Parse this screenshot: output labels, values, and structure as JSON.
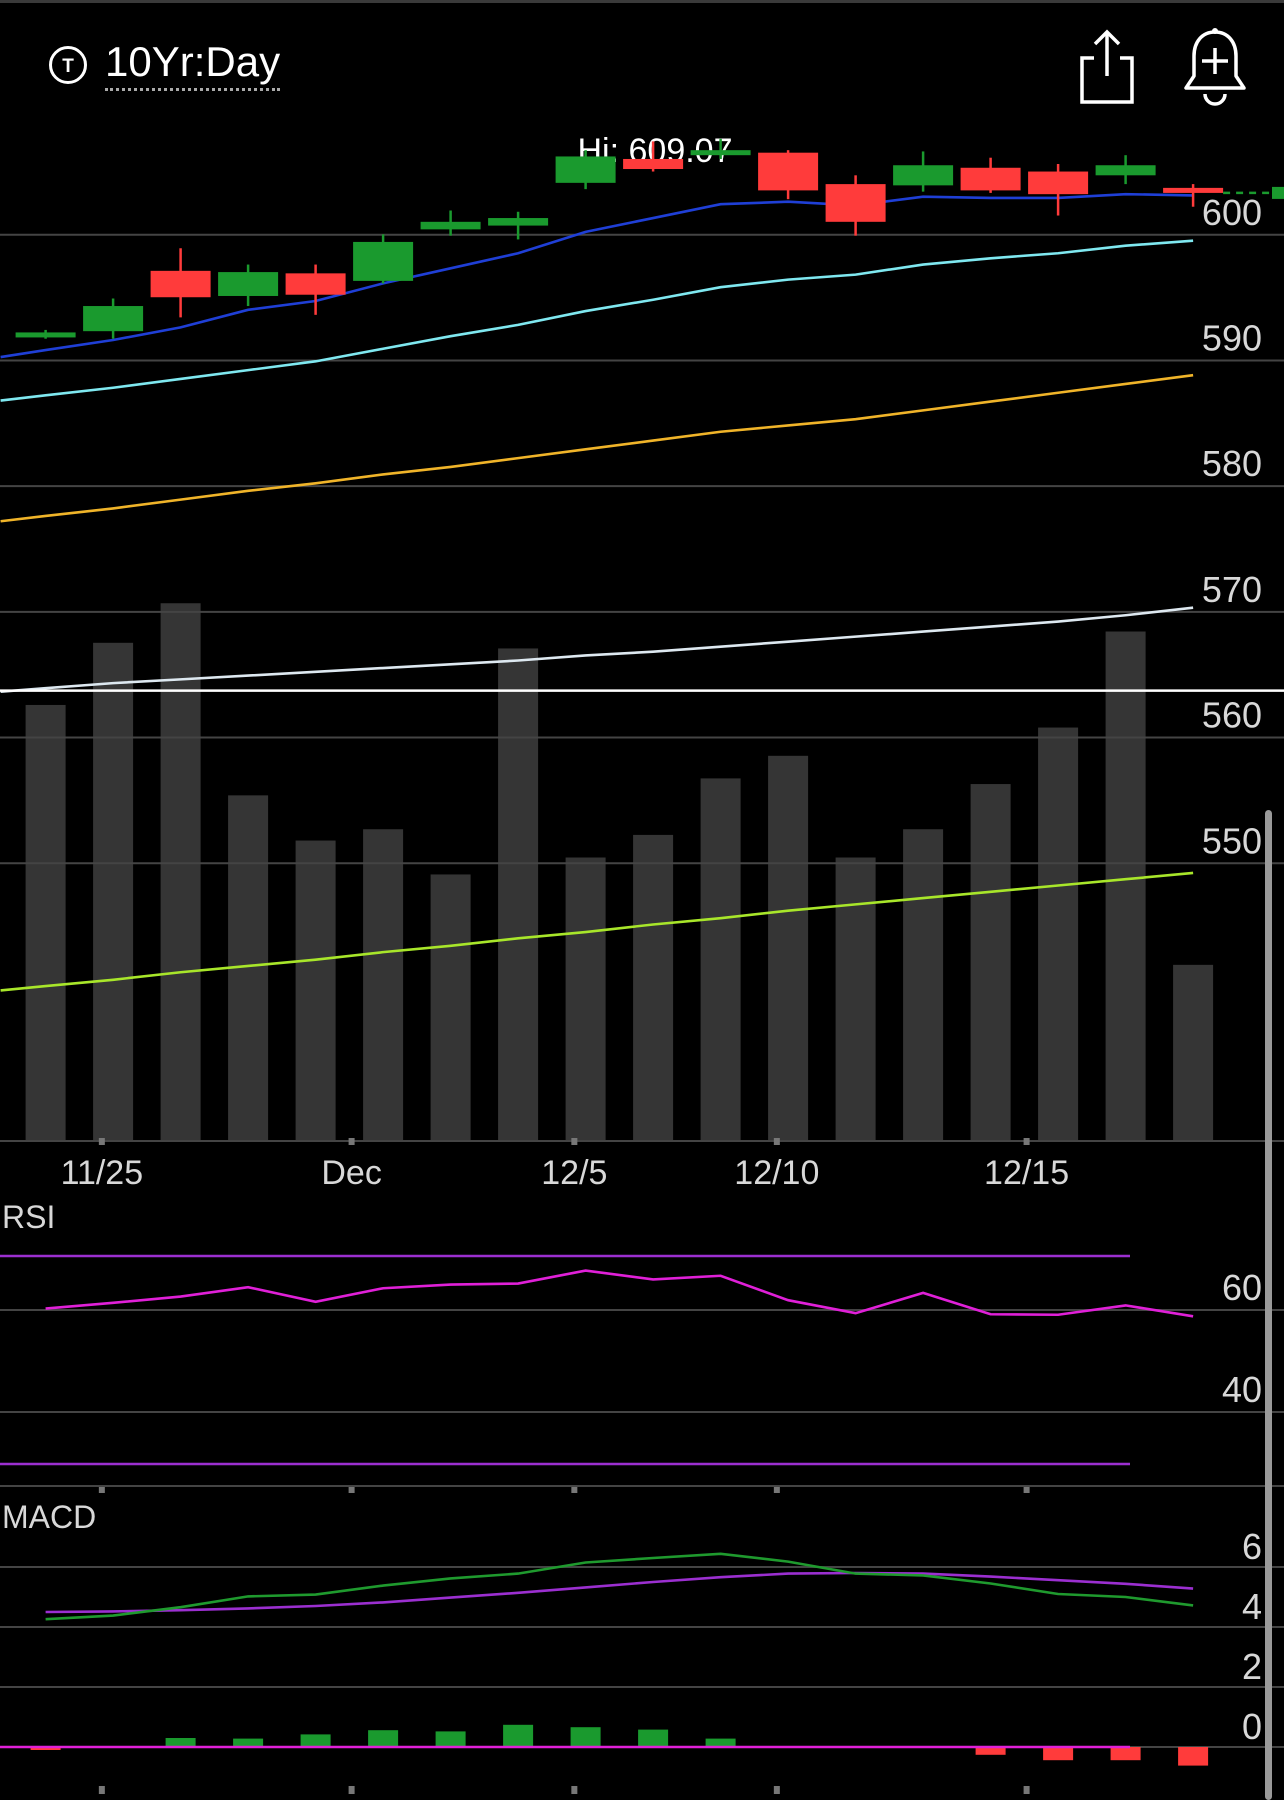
{
  "header": {
    "symbol_icon": "ticker-circle-icon",
    "symbol_letter": "T",
    "range_label": "10Yr:Day",
    "share_icon": "share-icon",
    "alert_icon": "bell-plus-icon"
  },
  "chart_data": {
    "type": "candlestick",
    "hi_label": "Hi: 609.07",
    "price_axis": {
      "ticks": [
        600,
        590,
        580,
        570,
        560,
        550
      ],
      "range": [
        544.4,
        610.8
      ]
    },
    "x_labels": [
      {
        "label": "11/25",
        "index": 1.5
      },
      {
        "label": "Dec",
        "index": 5.2
      },
      {
        "label": "12/5",
        "index": 8.5
      },
      {
        "label": "12/10",
        "index": 11.5
      },
      {
        "label": "12/15",
        "index": 15.2
      }
    ],
    "candles": [
      {
        "o": 593.6,
        "c": 593.9,
        "h": 594.1,
        "l": 593.4
      },
      {
        "o": 594.0,
        "c": 596.0,
        "h": 596.6,
        "l": 593.4
      },
      {
        "o": 598.8,
        "c": 596.7,
        "h": 600.6,
        "l": 595.1
      },
      {
        "o": 596.8,
        "c": 598.7,
        "h": 599.3,
        "l": 596.0
      },
      {
        "o": 598.6,
        "c": 596.9,
        "h": 599.3,
        "l": 595.3
      },
      {
        "o": 598.0,
        "c": 601.1,
        "h": 601.7,
        "l": 597.8
      },
      {
        "o": 602.1,
        "c": 602.7,
        "h": 603.6,
        "l": 601.6
      },
      {
        "o": 602.4,
        "c": 603.0,
        "h": 603.5,
        "l": 601.3
      },
      {
        "o": 605.8,
        "c": 607.9,
        "h": 608.4,
        "l": 605.3
      },
      {
        "o": 607.7,
        "c": 606.9,
        "h": 609.1,
        "l": 606.7
      },
      {
        "o": 608.0,
        "c": 608.4,
        "h": 609.3,
        "l": 607.7
      },
      {
        "o": 608.2,
        "c": 605.2,
        "h": 608.4,
        "l": 604.5
      },
      {
        "o": 605.7,
        "c": 602.7,
        "h": 606.4,
        "l": 601.6
      },
      {
        "o": 605.6,
        "c": 607.2,
        "h": 608.3,
        "l": 605.1
      },
      {
        "o": 607.0,
        "c": 605.2,
        "h": 607.8,
        "l": 605.0
      },
      {
        "o": 606.7,
        "c": 604.9,
        "h": 607.3,
        "l": 603.2
      },
      {
        "o": 606.4,
        "c": 607.2,
        "h": 608.0,
        "l": 605.7
      },
      {
        "o": 605.4,
        "c": 605.0,
        "h": 605.7,
        "l": 603.9
      }
    ],
    "last_price": 605.0,
    "volume": [
      90,
      123,
      153,
      48,
      15,
      25,
      0,
      125,
      11,
      27,
      42,
      58,
      0,
      22,
      52,
      48,
      102,
      0
    ],
    "volume_tail": [
      0,
      0,
      0,
      0,
      0,
      0,
      0,
      0,
      0,
      0,
      0,
      0,
      0,
      0,
      0,
      0,
      0,
      0
    ],
    "volume_heights": [
      0.77,
      0.88,
      0.95,
      0.61,
      0.53,
      0.55,
      0.47,
      0.87,
      0.5,
      0.54,
      0.64,
      0.68,
      0.5,
      0.55,
      0.63,
      0.73,
      0.9,
      0.31
    ],
    "ma_fast": [
      592.5,
      593.3,
      594.3,
      595.7,
      596.4,
      597.8,
      599.0,
      600.2,
      601.9,
      603.0,
      604.1,
      604.3,
      604.0,
      604.7,
      604.6,
      604.6,
      604.9,
      604.8
    ],
    "ma_mid": [
      588.9,
      589.5,
      590.2,
      590.9,
      591.6,
      592.6,
      593.6,
      594.5,
      595.6,
      596.5,
      597.5,
      598.1,
      598.5,
      599.3,
      599.8,
      600.2,
      600.8,
      601.2
    ],
    "ma_slow": [
      579.3,
      579.9,
      580.6,
      581.3,
      581.9,
      582.6,
      583.2,
      583.9,
      584.6,
      585.3,
      586.0,
      586.5,
      587.0,
      587.7,
      588.4,
      589.1,
      589.8,
      590.5
    ],
    "ma_white": [
      565.6,
      566.0,
      566.3,
      566.6,
      566.9,
      567.2,
      567.5,
      567.8,
      568.2,
      568.5,
      568.9,
      569.3,
      569.7,
      570.1,
      570.5,
      570.9,
      571.4,
      572.0
    ],
    "white_line_level": 565.4,
    "ma_green": [
      541.9,
      542.4,
      543.0,
      543.5,
      544.0,
      544.6,
      545.1,
      545.7,
      546.2,
      546.8,
      547.3,
      547.9,
      548.4,
      548.9,
      549.4,
      549.9,
      550.4,
      550.9
    ],
    "rsi": {
      "label": "RSI",
      "ticks": [
        60,
        40
      ],
      "upper_band": 70,
      "lower_band": 30,
      "values": [
        59.9,
        61.0,
        62.2,
        64.0,
        61.2,
        63.8,
        64.5,
        64.7,
        67.2,
        65.5,
        66.2,
        61.5,
        59.0,
        62.9,
        58.8,
        58.7,
        60.5,
        58.4
      ]
    },
    "macd": {
      "label": "MACD",
      "ticks": [
        6,
        4,
        2,
        0
      ],
      "macd_line": [
        4.26,
        4.38,
        4.66,
        5.02,
        5.08,
        5.38,
        5.62,
        5.78,
        6.15,
        6.3,
        6.44,
        6.18,
        5.78,
        5.72,
        5.45,
        5.1,
        5.0,
        4.72
      ],
      "signal_line": [
        4.5,
        4.52,
        4.56,
        4.62,
        4.7,
        4.82,
        4.98,
        5.14,
        5.32,
        5.5,
        5.66,
        5.78,
        5.8,
        5.78,
        5.68,
        5.56,
        5.44,
        5.28
      ],
      "histogram": [
        -0.1,
        0,
        0.3,
        0.28,
        0.42,
        0.56,
        0.52,
        0.74,
        0.66,
        0.58,
        0.28,
        0,
        0,
        0,
        -0.26,
        -0.44,
        -0.44,
        -0.62
      ]
    },
    "colors": {
      "up": "#1a9a2e",
      "down": "#ff3b3b",
      "ma_fast": "#1f3fd6",
      "ma_mid": "#7fe8f0",
      "ma_slow": "#f0b429",
      "ma_white": "#dde8f0",
      "ma_green": "#a8e62a",
      "rsi": "#e020d8",
      "band": "#9b2fd0",
      "macd": "#1f9a2e",
      "signal": "#9b2fd0",
      "zero": "#e020d8",
      "grid": "#444444",
      "volume": "#353535",
      "axis_text": "#d8d8d8"
    }
  }
}
